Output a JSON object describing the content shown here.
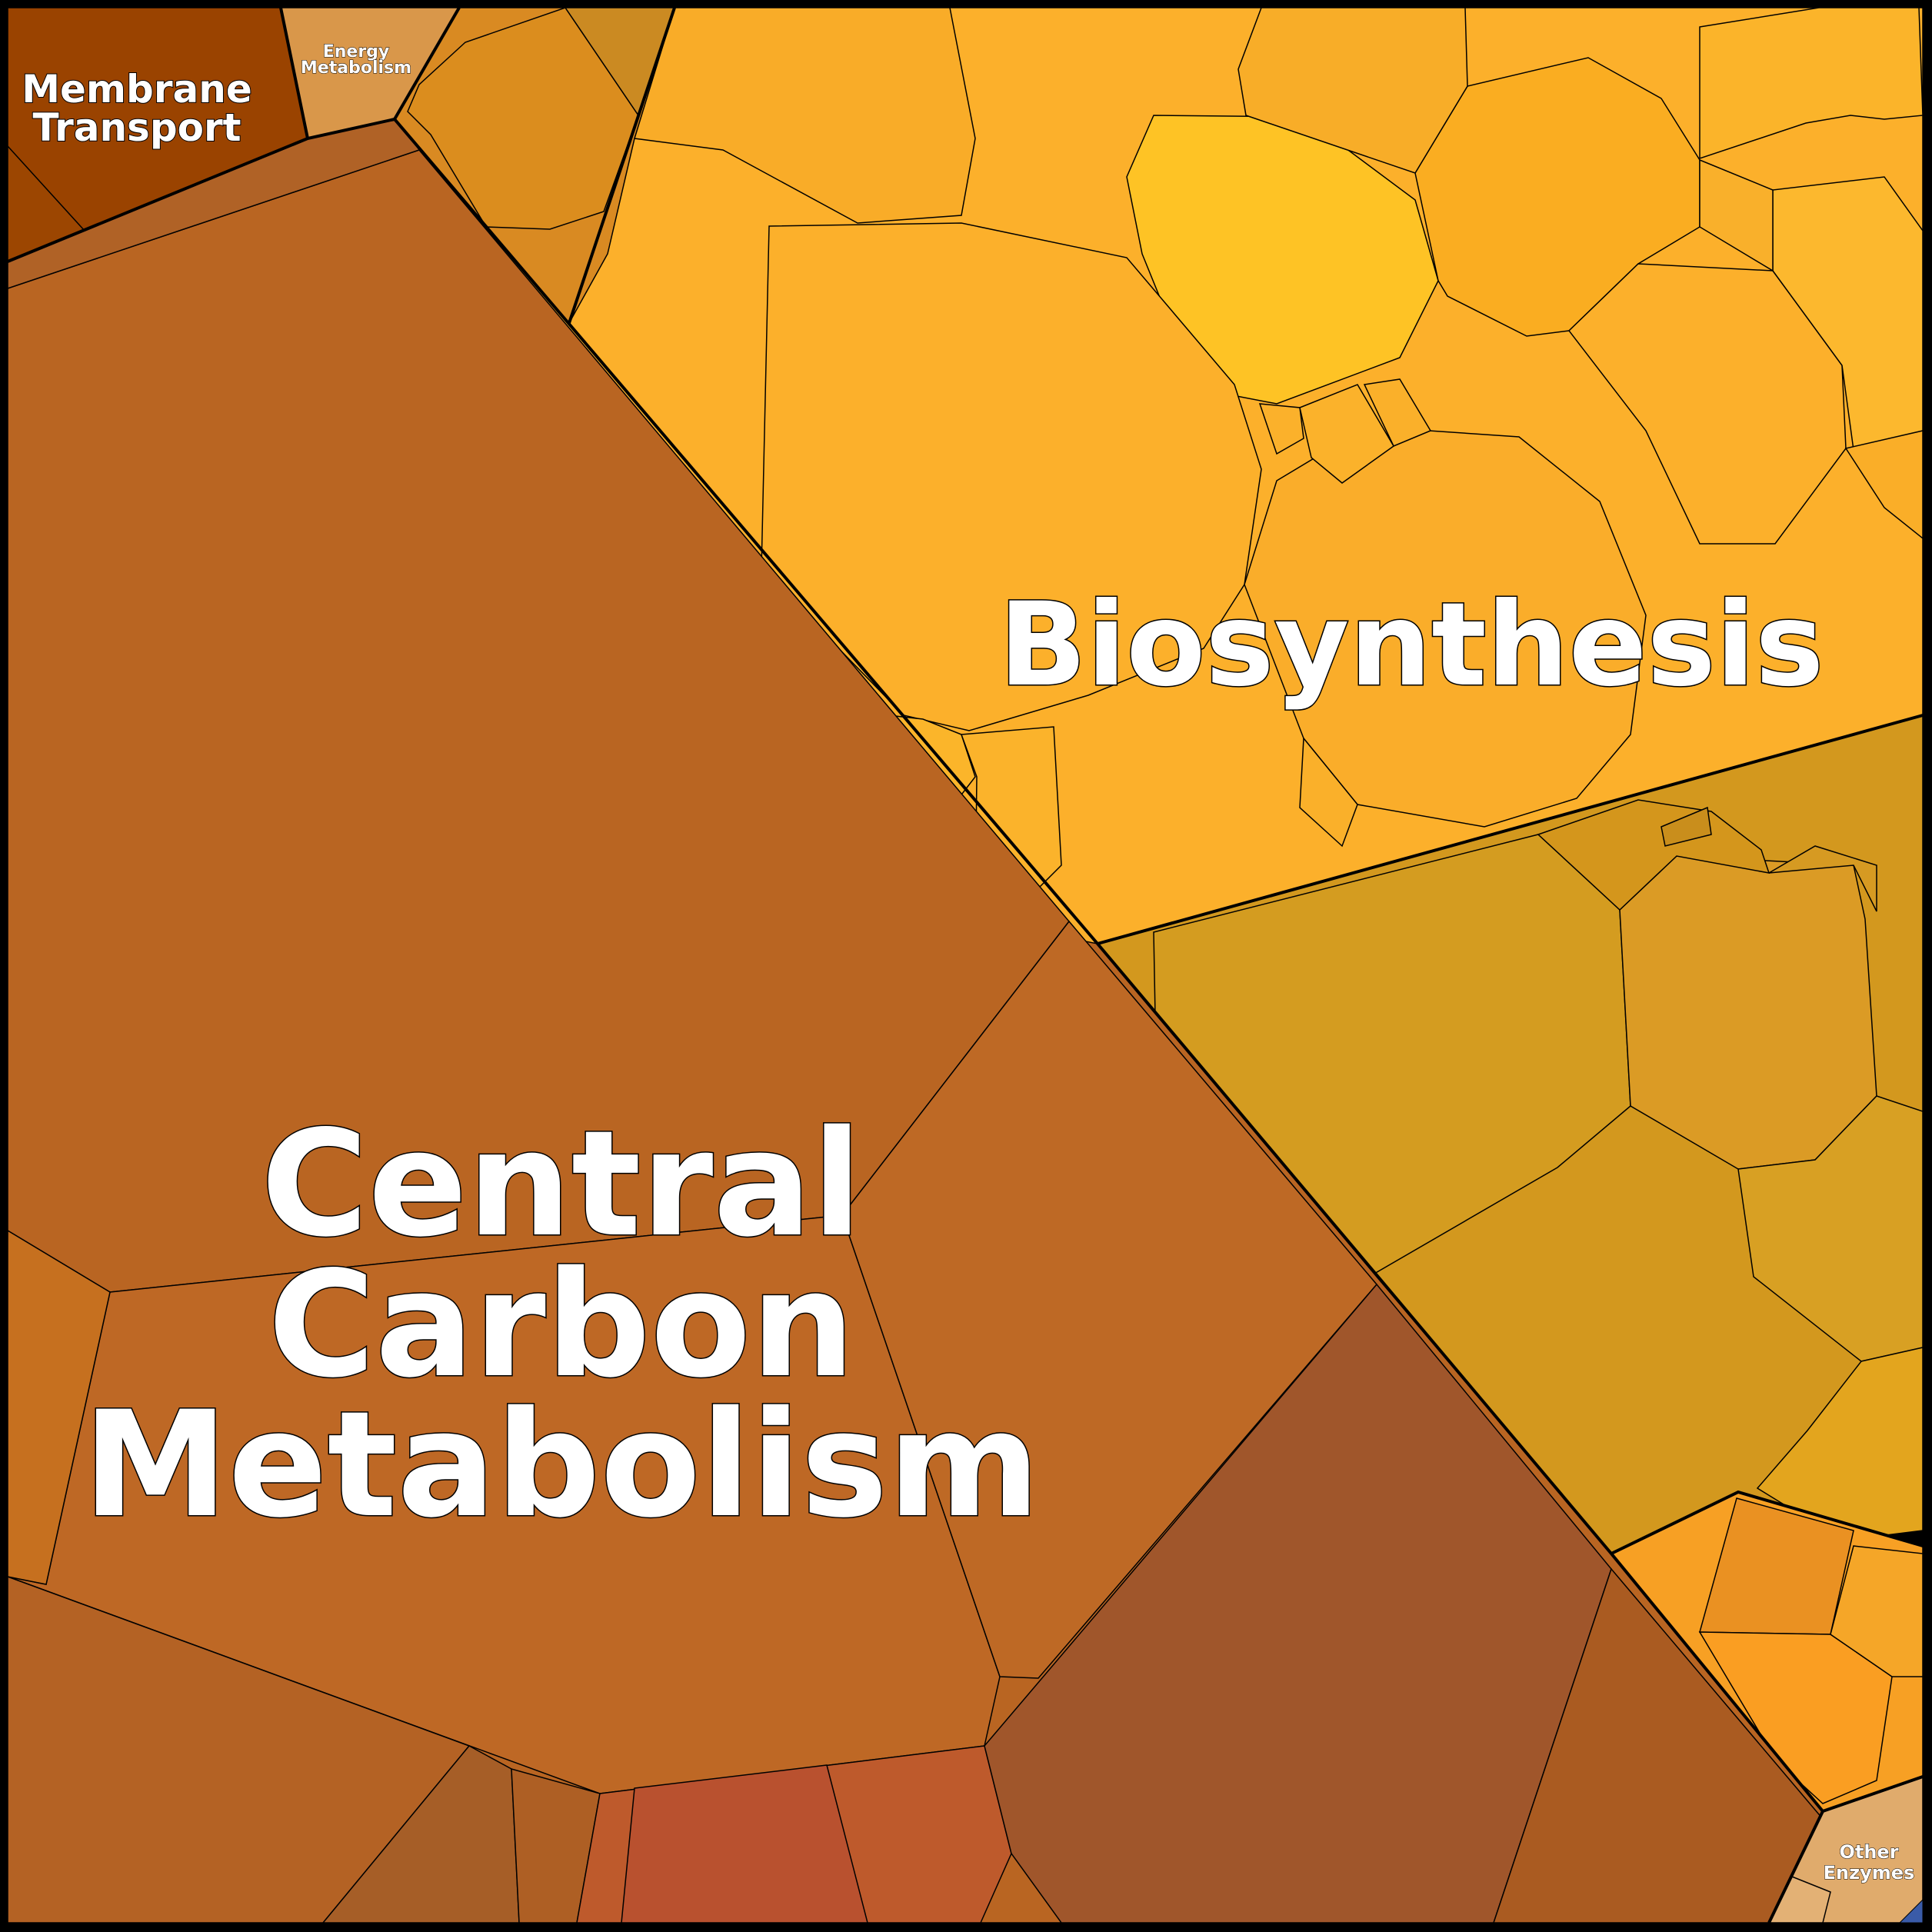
{
  "diagram": {
    "type": "voronoi-treemap",
    "groups": [
      {
        "id": "central-carbon",
        "label_lines": [
          "Central",
          "Carbon",
          "Metabolism"
        ],
        "color": "#B96522"
      },
      {
        "id": "biosynthesis",
        "label_lines": [
          "Biosynthesis"
        ],
        "color": "#FCB02B"
      },
      {
        "id": "membrane-transport",
        "label_lines": [
          "Membrane",
          "Transport"
        ],
        "color": "#9A4300"
      },
      {
        "id": "energy-metabolism",
        "label_lines": [
          "Energy",
          "Metabolism"
        ],
        "color": "#D9974A"
      },
      {
        "id": "other-enzymes",
        "label_lines": [
          "Other",
          "Enzymes"
        ],
        "color": "#E0AB6C"
      }
    ],
    "colors": {
      "border": "#000000",
      "label_fill": "#FFFFFF",
      "label_stroke": "#000000",
      "bio_sub_gold": "#D3981E",
      "bio_sub_orange": "#F7A024"
    }
  }
}
